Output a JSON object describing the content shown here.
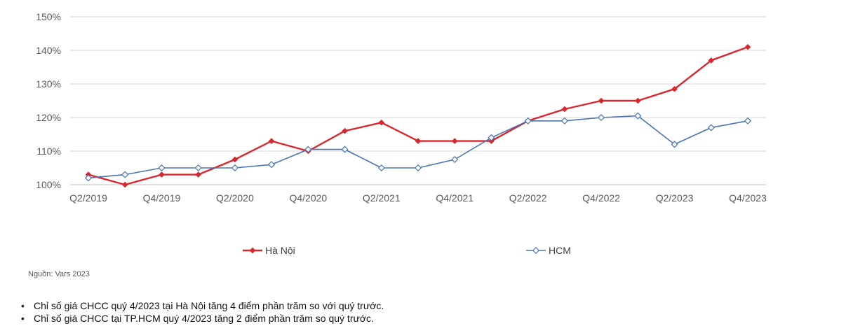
{
  "chart_data": {
    "type": "line",
    "categories": [
      "Q2/2019",
      "Q3/2019",
      "Q4/2019",
      "Q1/2020",
      "Q2/2020",
      "Q3/2020",
      "Q4/2020",
      "Q1/2021",
      "Q2/2021",
      "Q3/2021",
      "Q4/2021",
      "Q1/2022",
      "Q2/2022",
      "Q3/2022",
      "Q4/2022",
      "Q1/2023",
      "Q2/2023",
      "Q3/2023",
      "Q4/2023"
    ],
    "x_tick_labels": [
      "Q2/2019",
      "Q4/2019",
      "Q2/2020",
      "Q4/2020",
      "Q2/2021",
      "Q4/2021",
      "Q2/2022",
      "Q4/2022",
      "Q2/2023",
      "Q4/2023"
    ],
    "y_ticks": [
      "100%",
      "110%",
      "120%",
      "130%",
      "140%",
      "150%"
    ],
    "ylim": [
      100,
      150
    ],
    "grid": true,
    "legend_position": "bottom",
    "series": [
      {
        "name": "Hà Nội",
        "color": "#d9272e",
        "marker": "diamond-filled",
        "values": [
          103,
          100,
          103,
          103,
          107.5,
          113,
          110,
          116,
          118.5,
          113,
          113,
          113,
          119,
          122.5,
          125,
          125,
          128.5,
          137,
          141
        ]
      },
      {
        "name": "HCM",
        "color": "#4a73b5",
        "marker": "diamond-open",
        "values": [
          102,
          103,
          105,
          105,
          105,
          106,
          110.5,
          110.5,
          105,
          105,
          107.5,
          114,
          119,
          119,
          120,
          120.5,
          112,
          117,
          119
        ]
      }
    ]
  },
  "source": "Nguồn: Vars 2023",
  "notes": [
    "Chỉ số giá CHCC quý 4/2023 tại Hà Nội tăng 4 điểm phần trăm so với quý trước.",
    "Chỉ số giá CHCC tại TP.HCM quý 4/2023 tăng 2 điểm phần trăm so quý trước."
  ]
}
